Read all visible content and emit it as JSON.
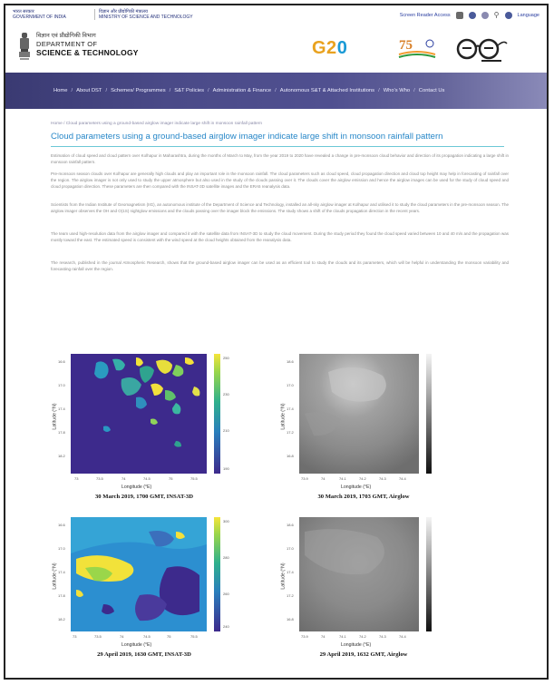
{
  "top_strip": {
    "gov_hindi": "भारत सरकार",
    "gov_english": "GOVERNMENT OF INDIA",
    "ministry_hindi": "विज्ञान और प्रौद्योगिकी मंत्रालय",
    "ministry_english": "MINISTRY OF SCIENCE AND TECHNOLOGY",
    "screen_reader": "Screen Reader Access",
    "language": "Language"
  },
  "header": {
    "brand_hindi": "विज्ञान एवं प्रौद्योगिकी विभाग",
    "brand_line1": "DEPARTMENT OF",
    "brand_line2": "SCIENCE & TECHNOLOGY",
    "g20_left": "G2",
    "g20_right": "0"
  },
  "nav": {
    "items": [
      "Home",
      "About DST",
      "Schemes/ Programmes",
      "S&T Policies",
      "Administration & Finance",
      "Autonomous S&T & Attached Institutions",
      "Who's Who",
      "Contact Us"
    ]
  },
  "breadcrumb": "Home / Cloud parameters using a ground-based airglow imager indicate large shift in monsoon rainfall pattern",
  "article": {
    "title": "Cloud parameters using a ground-based airglow imager indicate large shift in monsoon rainfall pattern",
    "paragraphs": [
      "Estimation of cloud speed and cloud pattern over Kolhapur in Maharashtra, during the months of March to May, from the year 2019 to 2020 have revealed a change in pre-monsoon cloud behavior and direction of its propagation indicating a large shift in monsoon rainfall pattern.",
      "Pre-monsoon season clouds over Kolhapur are generally high clouds and play an important role in the monsoon rainfall. The cloud parameters such as cloud speed, cloud propagation direction and cloud top height may help in forecasting of rainfall over the region. The airglow imager is not only used to study the upper atmosphere but also used in the study of the clouds passing over it. The clouds cover the airglow emission and hence the airglow images can be used for the study of cloud speed and cloud propagation direction. These parameters are then compared with the INSAT-3D satellite images and the ERA5 reanalysis data.",
      "Scientists from the Indian Institute of Geomagnetism (IIG), an autonomous institute of the Department of Science and Technology, installed an all-sky airglow imager at Kolhapur and utilised it to study the cloud parameters in the pre-monsoon season. The airglow imager observes the OH and O(1S) nightglow emissions and the clouds passing over the imager block the emissions. The study shows a shift of the clouds propagation direction in the recent years.",
      "The team used high-resolution data from the airglow imager and compared it with the satellite data from INSAT-3D to study the cloud movement. During the study period they found the cloud speed varied between 10 and 40 m/s and the propagation was mostly toward the east. The estimated speed is consistent with the wind speed at the cloud heights obtained from the reanalysis data.",
      "The research, published in the journal Atmospheric Research, shows that the ground-based airglow imager can be used as an efficient tool to study the clouds and its parameters, which will be helpful in understanding the monsoon variability and forecasting rainfall over the region."
    ]
  },
  "figures": [
    {
      "caption": "30 March 2019, 1700 GMT, INSAT-3D",
      "xlabel": "Longitude (°E)",
      "ylabel": "Latitude (°N)"
    },
    {
      "caption": "30 March 2019, 1703 GMT, Airglow",
      "xlabel": "Longitude (°E)",
      "ylabel": "Latitude (°N)"
    },
    {
      "caption": "29 April 2019, 1630 GMT, INSAT-3D",
      "xlabel": "Longitude (°E)",
      "ylabel": "Latitude (°N)"
    },
    {
      "caption": "29 April 2019, 1632 GMT, Airglow",
      "xlabel": "Longitude (°E)",
      "ylabel": "Latitude (°N)"
    }
  ]
}
